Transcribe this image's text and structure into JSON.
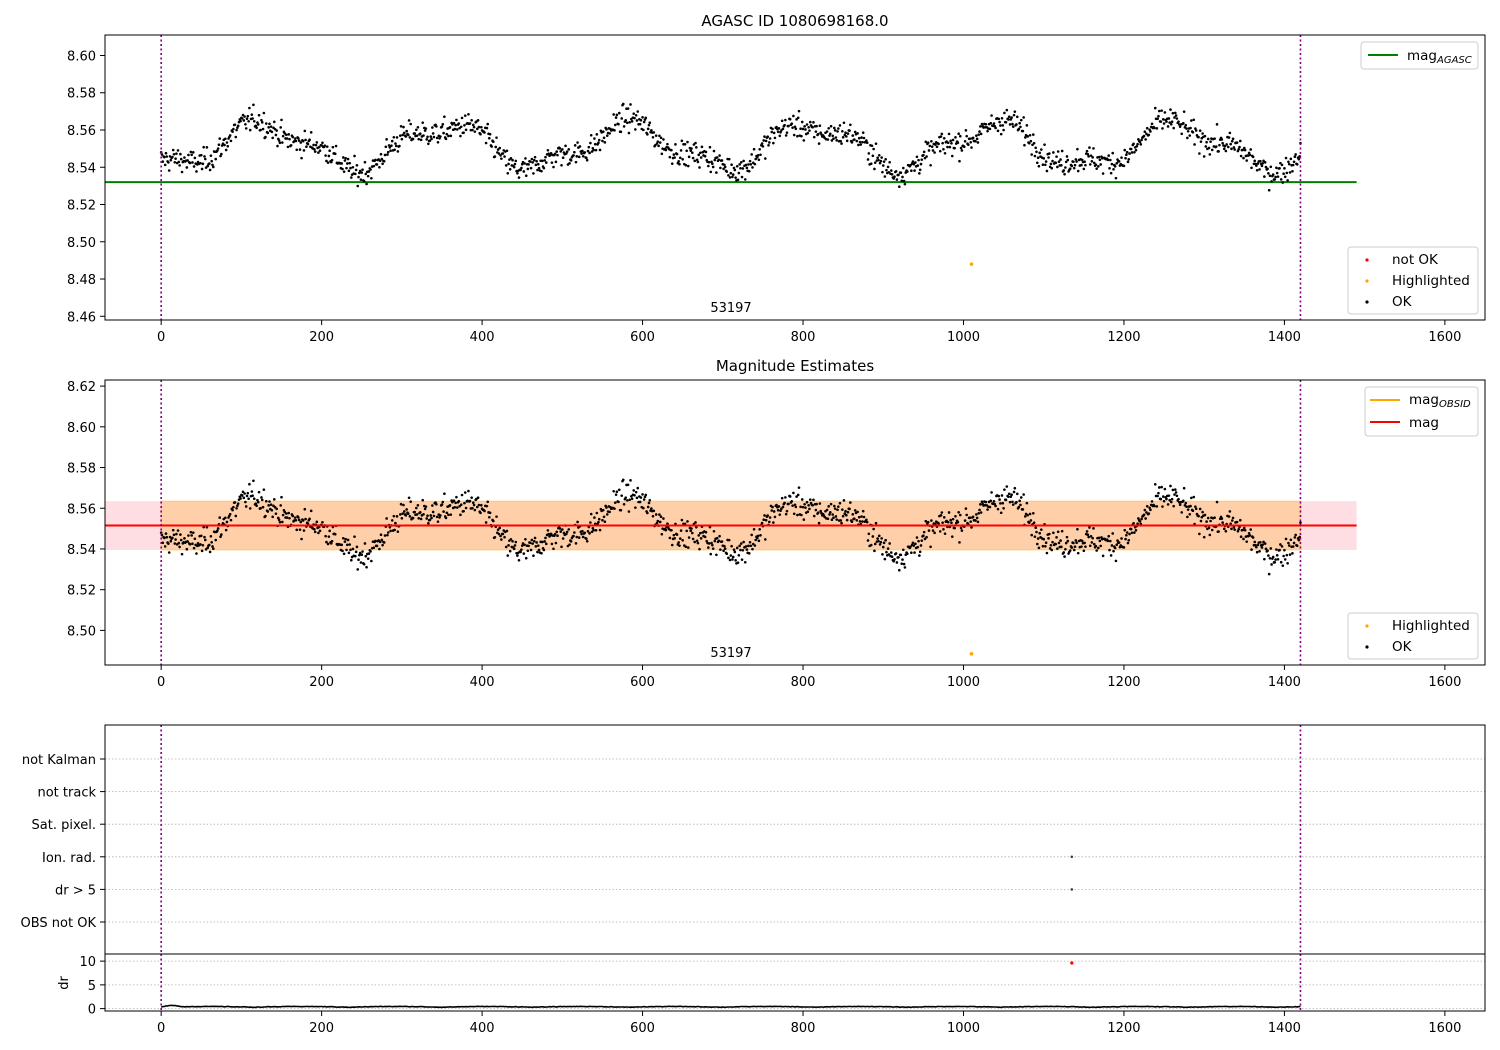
{
  "chart_data": [
    {
      "type": "scatter",
      "title": "AGASC ID 1080698168.0",
      "xlim": [
        -70,
        1650
      ],
      "ylim": [
        8.458,
        8.611
      ],
      "xticks": [
        "0",
        "200",
        "400",
        "600",
        "800",
        "1000",
        "1200",
        "1400",
        "1600"
      ],
      "yticks": [
        "8.46",
        "8.48",
        "8.50",
        "8.52",
        "8.54",
        "8.56",
        "8.58",
        "8.60"
      ],
      "vlines_x": [
        0,
        1420
      ],
      "obsid_label": {
        "text": "53197",
        "x": 710
      },
      "mag_agasc": 8.532,
      "line_x_end": 1490,
      "highlighted_points": [
        {
          "x": 1010,
          "y": 8.488
        }
      ],
      "legend_lines": [
        {
          "label": "mag",
          "sub": "AGASC",
          "color": "#008000"
        }
      ],
      "legend_points": [
        {
          "label": "not OK",
          "color": "#ff0000"
        },
        {
          "label": "Highlighted",
          "color": "#ffa500"
        },
        {
          "label": "OK",
          "color": "#000000"
        }
      ],
      "grid": false
    },
    {
      "type": "scatter",
      "title": "Magnitude Estimates",
      "xlim": [
        -70,
        1650
      ],
      "ylim": [
        8.483,
        8.623
      ],
      "xticks": [
        "0",
        "200",
        "400",
        "600",
        "800",
        "1000",
        "1200",
        "1400",
        "1600"
      ],
      "yticks": [
        "8.50",
        "8.52",
        "8.54",
        "8.56",
        "8.58",
        "8.60",
        "8.62"
      ],
      "vlines_x": [
        0,
        1420
      ],
      "obsid_label": {
        "text": "53197",
        "x": 710
      },
      "mag": 8.5515,
      "mag_band": [
        8.5395,
        8.5635
      ],
      "line_x_end": 1490,
      "highlighted_points": [
        {
          "x": 1010,
          "y": 8.4885
        }
      ],
      "legend_lines": [
        {
          "label": "mag",
          "sub": "OBSID",
          "color": "#ffa500"
        },
        {
          "label": "mag",
          "sub": "",
          "color": "#ff0000"
        }
      ],
      "legend_points": [
        {
          "label": "Highlighted",
          "color": "#ffa500"
        },
        {
          "label": "OK",
          "color": "#000000"
        }
      ],
      "grid": false
    },
    {
      "type": "scatter",
      "title": "",
      "xlim": [
        -70,
        1650
      ],
      "flag_labels": [
        "not Kalman",
        "not track",
        "Sat. pixel.",
        "Ion. rad.",
        "dr > 5",
        "OBS not OK"
      ],
      "flag_points": [
        {
          "flag": "Ion. rad.",
          "x": 1135
        },
        {
          "flag": "dr > 5",
          "x": 1135
        }
      ],
      "vlines_x": [
        0,
        1420
      ],
      "grid": true
    },
    {
      "type": "scatter",
      "title": "",
      "ylabel": "dr",
      "xlim": [
        -70,
        1650
      ],
      "ylim": [
        -0.5,
        11.5
      ],
      "xticks": [
        "0",
        "200",
        "400",
        "600",
        "800",
        "1000",
        "1200",
        "1400",
        "1600"
      ],
      "yticks": [
        "0",
        "5",
        "10"
      ],
      "vlines_x": [
        0,
        1420
      ],
      "outlier_points": [
        {
          "x": 1135,
          "y": 9.6
        }
      ],
      "grid": true
    }
  ]
}
